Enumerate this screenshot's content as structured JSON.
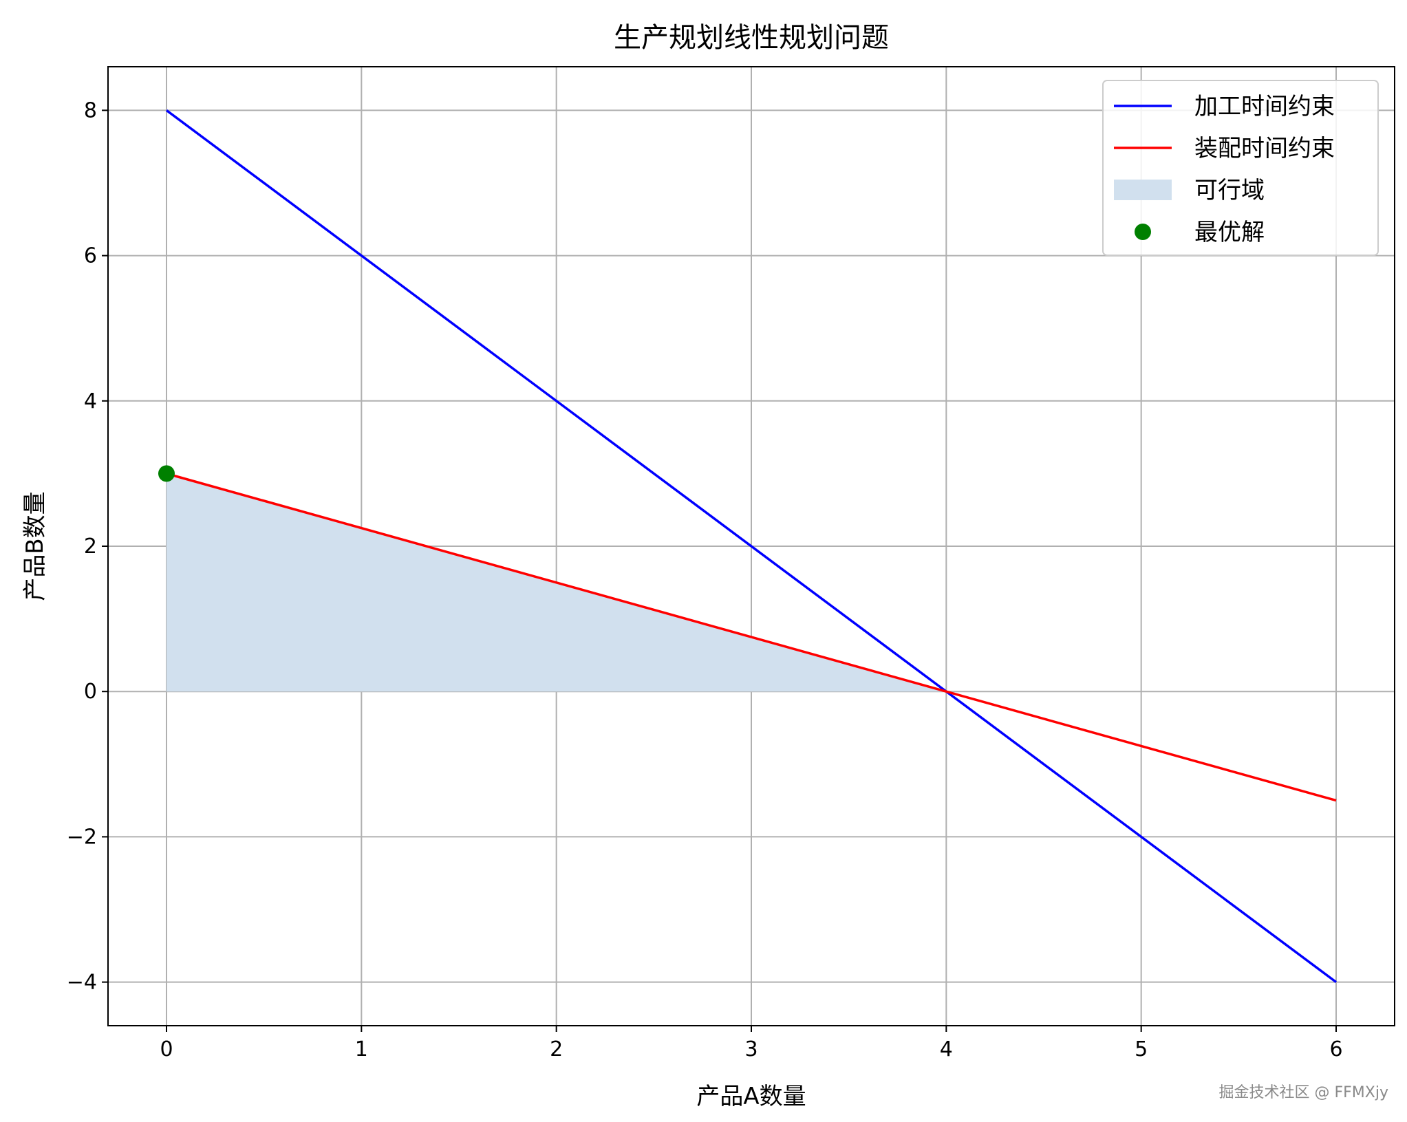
{
  "chart_data": {
    "type": "line",
    "title": "生产规划线性规划问题",
    "xlabel": "产品A数量",
    "ylabel": "产品B数量",
    "xlim": [
      -0.3,
      6.3
    ],
    "ylim": [
      -4.6,
      8.6
    ],
    "xticks": [
      0,
      1,
      2,
      3,
      4,
      5,
      6
    ],
    "yticks": [
      -4,
      -2,
      0,
      2,
      4,
      6,
      8
    ],
    "xtick_labels": [
      "0",
      "1",
      "2",
      "3",
      "4",
      "5",
      "6"
    ],
    "ytick_labels": [
      "−4",
      "−2",
      "0",
      "2",
      "4",
      "6",
      "8"
    ],
    "grid": true,
    "legend_position": "top-right",
    "series": [
      {
        "name": "加工时间约束",
        "kind": "line",
        "color": "#0000ff",
        "x": [
          0,
          6
        ],
        "y": [
          8,
          -4
        ]
      },
      {
        "name": "装配时间约束",
        "kind": "line",
        "color": "#ff0000",
        "x": [
          0,
          6
        ],
        "y": [
          3,
          -1.5
        ]
      },
      {
        "name": "可行域",
        "kind": "area",
        "color": "#d1e0ee",
        "x": [
          0,
          4,
          0
        ],
        "y": [
          3,
          0,
          0
        ]
      },
      {
        "name": "最优解",
        "kind": "point",
        "color": "#008000",
        "x": [
          0
        ],
        "y": [
          3
        ]
      }
    ]
  },
  "watermark": "掘金技术社区 @ FFMXjy"
}
